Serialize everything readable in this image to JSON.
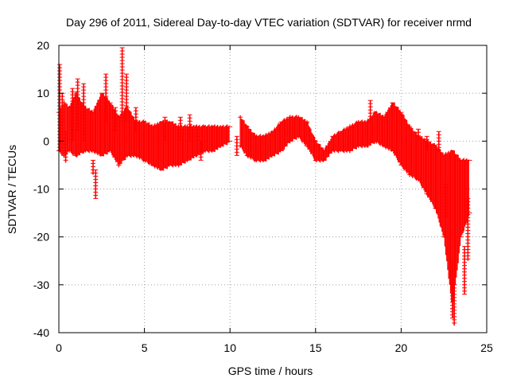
{
  "chart_data": {
    "type": "scatter",
    "title": "Day 296 of 2011, Sidereal Day-to-day VTEC variation (SDTVAR) for receiver nrmd",
    "xlabel": "GPS time / hours",
    "ylabel": "SDTVAR / TECUs",
    "xlim": [
      0,
      25
    ],
    "ylim": [
      -40,
      20
    ],
    "x_ticks": [
      0,
      5,
      10,
      15,
      20,
      25
    ],
    "y_ticks": [
      -40,
      -30,
      -20,
      -10,
      0,
      10,
      20
    ],
    "x_tick_labels": [
      "0",
      "5",
      "10",
      "15",
      "20",
      "25"
    ],
    "y_tick_labels": [
      "-40",
      "-30",
      "-20",
      "-10",
      "0",
      "10",
      "20"
    ],
    "grid": true,
    "legend": "none",
    "marker": "plus with error bars",
    "series": [
      {
        "name": "SDTVAR",
        "color": "#ff0000",
        "band": {
          "x": [
            0.0,
            0.3,
            0.6,
            1.0,
            1.5,
            2.0,
            2.5,
            3.0,
            3.5,
            4.0,
            4.5,
            5.0,
            5.5,
            6.0,
            6.5,
            7.0,
            7.5,
            8.0,
            8.5,
            9.0,
            9.5,
            10.0,
            10.3,
            10.6,
            11.0,
            11.5,
            12.0,
            12.5,
            13.0,
            13.5,
            14.0,
            14.5,
            15.0,
            15.5,
            16.0,
            16.5,
            17.0,
            17.5,
            18.0,
            18.5,
            19.0,
            19.5,
            20.0,
            20.5,
            21.0,
            21.5,
            22.0,
            22.5,
            23.0,
            23.5,
            24.0
          ],
          "upper": [
            6,
            8,
            7,
            10,
            7,
            6,
            10,
            8,
            5,
            7,
            4,
            4,
            3,
            4,
            4,
            3,
            3,
            3,
            3,
            3,
            3,
            3,
            null,
            5,
            3,
            1,
            1,
            2,
            4,
            5,
            5,
            4,
            0,
            -2,
            1,
            2,
            3,
            4,
            4,
            6,
            5,
            8,
            6,
            3,
            1,
            0,
            -1,
            -3,
            -2,
            -4,
            -4
          ],
          "lower": [
            -2,
            -3,
            -2,
            -3,
            -2,
            -2,
            -3,
            -2,
            -5,
            -3,
            -3,
            -4,
            -5,
            -6,
            -5,
            -5,
            -4,
            -3,
            -2,
            -2,
            -1,
            0,
            null,
            -1,
            -3,
            -4,
            -4,
            -3,
            -2,
            0,
            1,
            -1,
            -4,
            -4,
            -2,
            -2,
            -2,
            -1,
            -1,
            0,
            -1,
            -2,
            -5,
            -7,
            -8,
            -11,
            -14,
            -20,
            -35,
            -20,
            -15
          ]
        },
        "spikes": [
          {
            "x": 0.05,
            "from": -2,
            "to": 16
          },
          {
            "x": 0.2,
            "from": 0,
            "to": 10
          },
          {
            "x": 0.4,
            "from": -4.5,
            "to": 2
          },
          {
            "x": 0.8,
            "from": 0,
            "to": 11
          },
          {
            "x": 1.1,
            "from": 2,
            "to": 13
          },
          {
            "x": 1.45,
            "from": 0,
            "to": 12
          },
          {
            "x": 2.0,
            "from": -7,
            "to": -4
          },
          {
            "x": 2.15,
            "from": -12,
            "to": -6
          },
          {
            "x": 2.75,
            "from": 4,
            "to": 14
          },
          {
            "x": 3.3,
            "from": 2,
            "to": 7
          },
          {
            "x": 3.7,
            "from": 4,
            "to": 19.5
          },
          {
            "x": 3.95,
            "from": 4,
            "to": 14
          },
          {
            "x": 4.5,
            "from": 2,
            "to": 7
          },
          {
            "x": 6.2,
            "from": 0,
            "to": 5
          },
          {
            "x": 7.1,
            "from": 0,
            "to": 5
          },
          {
            "x": 7.65,
            "from": 0,
            "to": 5.5
          },
          {
            "x": 8.1,
            "from": 0,
            "to": 3
          },
          {
            "x": 8.3,
            "from": -4,
            "to": 0
          },
          {
            "x": 10.4,
            "from": -3,
            "to": 1
          },
          {
            "x": 18.2,
            "from": 4,
            "to": 8.5
          },
          {
            "x": 21.0,
            "from": 0,
            "to": 2.5
          },
          {
            "x": 21.5,
            "from": -2,
            "to": 1
          },
          {
            "x": 22.2,
            "from": -2,
            "to": 2
          },
          {
            "x": 22.6,
            "from": -16,
            "to": -9
          },
          {
            "x": 23.0,
            "from": -37,
            "to": -25
          },
          {
            "x": 23.1,
            "from": -38.5,
            "to": -30
          },
          {
            "x": 23.7,
            "from": -32,
            "to": -22
          },
          {
            "x": 23.9,
            "from": -25,
            "to": -12
          }
        ]
      }
    ]
  }
}
